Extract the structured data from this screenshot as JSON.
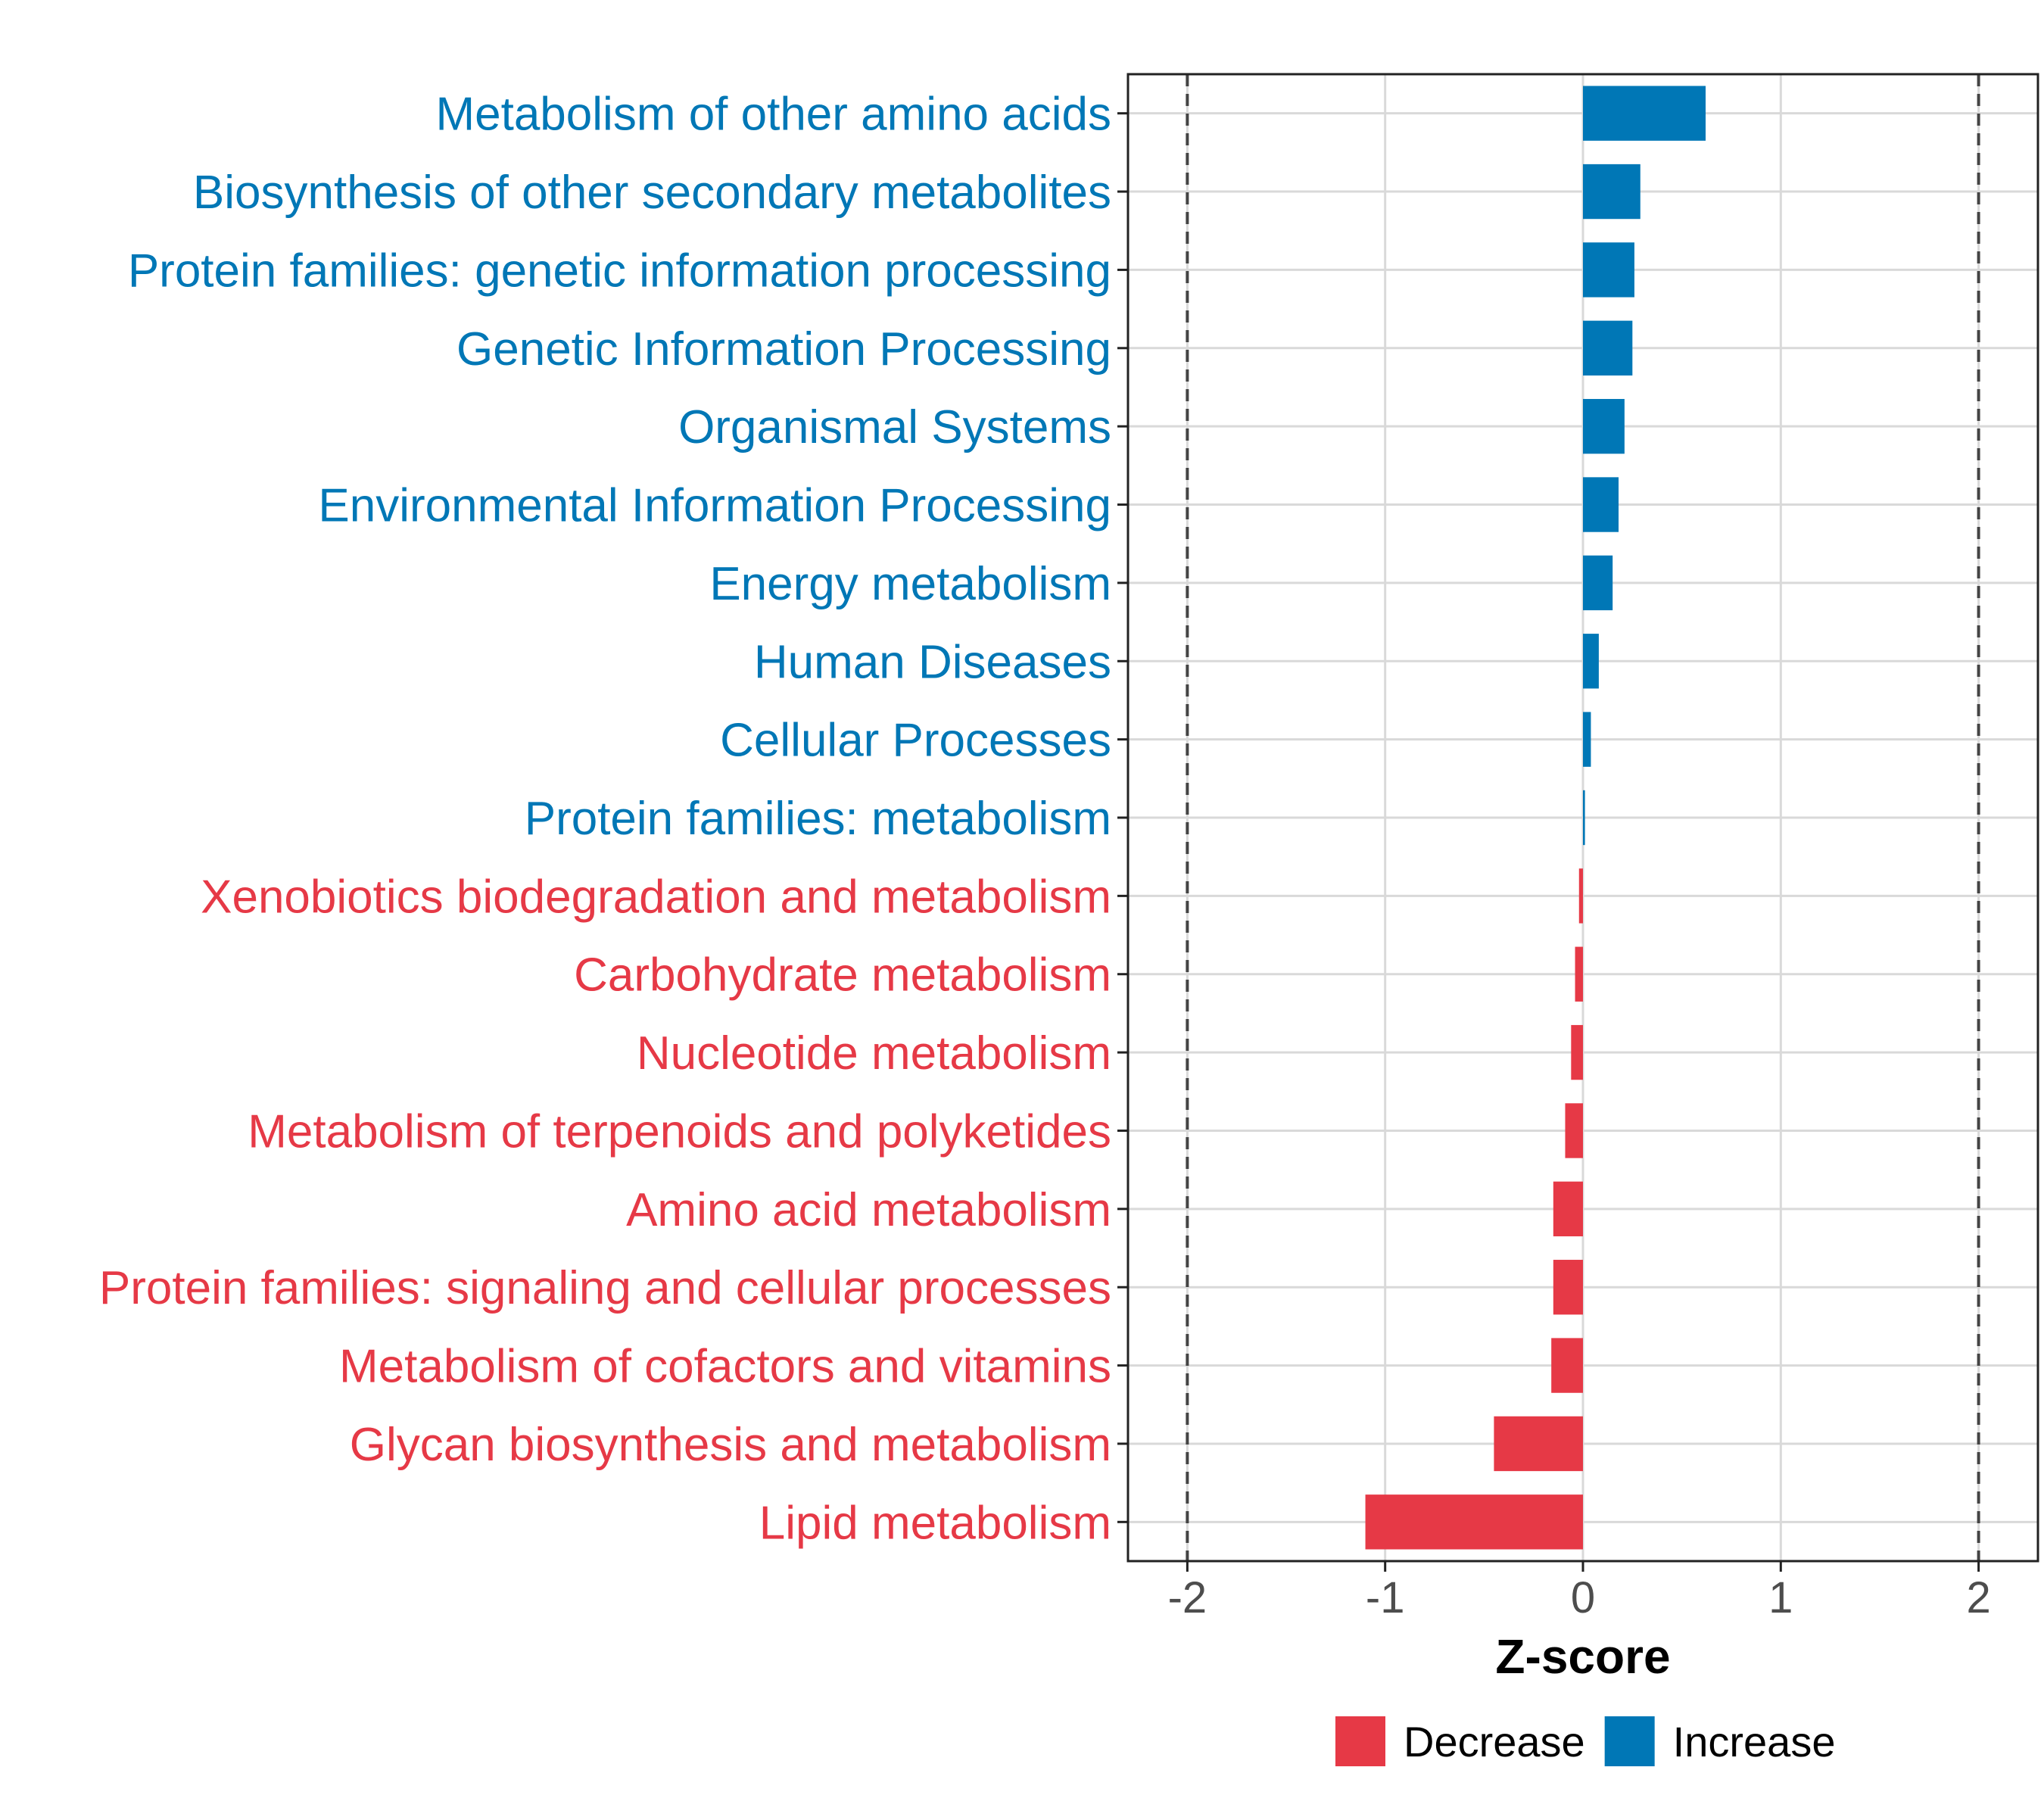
{
  "chart_data": {
    "type": "bar",
    "orientation": "horizontal",
    "xlabel": "Z-score",
    "ylabel": "",
    "xlim": [
      -2.3,
      2.3
    ],
    "xticks": [
      -2,
      -1,
      0,
      1,
      2
    ],
    "xtick_labels": [
      "-2",
      "-1",
      "0",
      "1",
      "2"
    ],
    "reference_lines": [
      -2,
      2
    ],
    "grid": true,
    "legend_position": "bottom",
    "colors": {
      "Decrease": "#E63946",
      "Increase": "#0077B6"
    },
    "legend": [
      {
        "label": "Decrease",
        "color": "#E63946"
      },
      {
        "label": "Increase",
        "color": "#0077B6"
      }
    ],
    "categories": [
      "Metabolism of other amino acids",
      "Biosynthesis of other secondary metabolites",
      "Protein families: genetic information processing",
      "Genetic Information Processing",
      "Organismal Systems",
      "Environmental Information Processing",
      "Energy metabolism",
      "Human Diseases",
      "Cellular Processes",
      "Protein families: metabolism",
      "Xenobiotics biodegradation and metabolism",
      "Carbohydrate metabolism",
      "Nucleotide metabolism",
      "Metabolism of terpenoids and polyketides",
      "Amino acid metabolism",
      "Protein families: signaling and cellular processes",
      "Metabolism of cofactors and vitamins",
      "Glycan biosynthesis and metabolism",
      "Lipid metabolism"
    ],
    "values": [
      0.62,
      0.29,
      0.26,
      0.25,
      0.21,
      0.18,
      0.15,
      0.08,
      0.04,
      0.01,
      -0.02,
      -0.04,
      -0.06,
      -0.09,
      -0.15,
      -0.15,
      -0.16,
      -0.45,
      -1.1
    ],
    "groups": [
      "Increase",
      "Increase",
      "Increase",
      "Increase",
      "Increase",
      "Increase",
      "Increase",
      "Increase",
      "Increase",
      "Increase",
      "Decrease",
      "Decrease",
      "Decrease",
      "Decrease",
      "Decrease",
      "Decrease",
      "Decrease",
      "Decrease",
      "Decrease"
    ]
  }
}
